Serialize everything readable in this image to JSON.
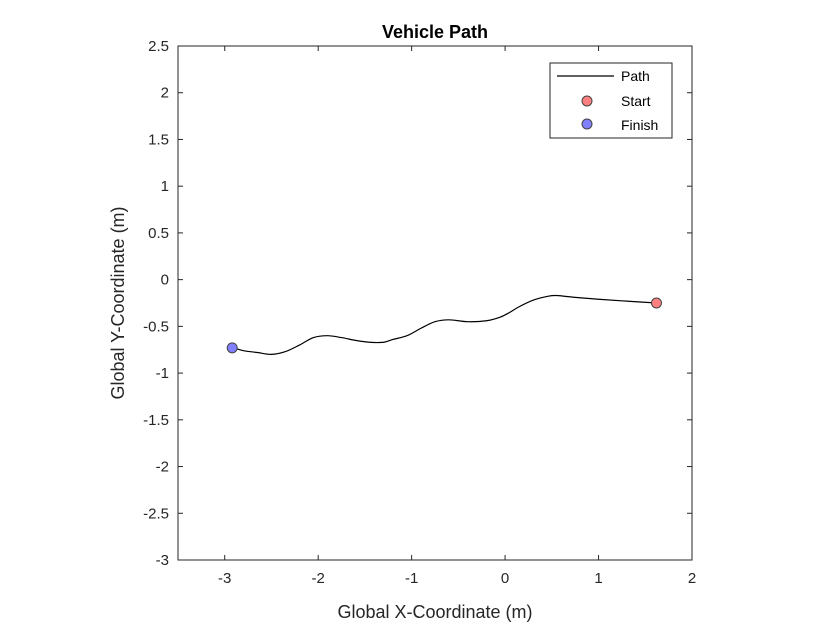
{
  "chart_data": {
    "type": "line",
    "title": "Vehicle Path",
    "xlabel": "Global X-Coordinate (m)",
    "ylabel": "Global Y-Coordinate (m)",
    "xlim": [
      -3.5,
      2
    ],
    "ylim": [
      -3,
      2.5
    ],
    "xticks": [
      -3,
      -2,
      -1,
      0,
      1,
      2
    ],
    "yticks": [
      2.5,
      2,
      1.5,
      1,
      0.5,
      0,
      -0.5,
      -1,
      -1.5,
      -2,
      -2.5,
      -3
    ],
    "grid": false,
    "legend_position": "top-right",
    "series": [
      {
        "name": "Path",
        "color": "#000000",
        "x": [
          1.62,
          1.3,
          1.0,
          0.75,
          0.55,
          0.45,
          0.3,
          0.15,
          0.05,
          -0.05,
          -0.2,
          -0.4,
          -0.6,
          -0.75,
          -0.9,
          -1.05,
          -1.2,
          -1.3,
          -1.45,
          -1.6,
          -1.75,
          -1.9,
          -2.05,
          -2.2,
          -2.35,
          -2.5,
          -2.65,
          -2.8,
          -2.9
        ],
        "y": [
          -0.25,
          -0.23,
          -0.21,
          -0.19,
          -0.17,
          -0.18,
          -0.22,
          -0.29,
          -0.35,
          -0.4,
          -0.44,
          -0.45,
          -0.43,
          -0.45,
          -0.52,
          -0.6,
          -0.64,
          -0.67,
          -0.67,
          -0.65,
          -0.62,
          -0.6,
          -0.62,
          -0.7,
          -0.77,
          -0.8,
          -0.78,
          -0.76,
          -0.73
        ]
      }
    ],
    "markers": [
      {
        "name": "Start",
        "x": 1.62,
        "y": -0.25,
        "color": "#ff8080"
      },
      {
        "name": "Finish",
        "x": -2.92,
        "y": -0.73,
        "color": "#8080ff"
      }
    ]
  }
}
